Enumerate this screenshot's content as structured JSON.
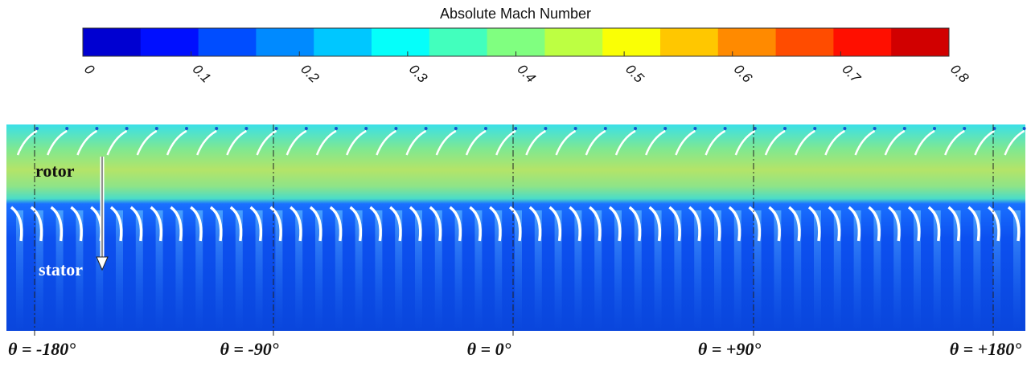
{
  "colorbar": {
    "title": "Absolute Mach Number",
    "lim": [
      0,
      0.8
    ],
    "ticks": [
      0,
      0.1,
      0.2,
      0.3,
      0.4,
      0.5,
      0.6,
      0.7,
      0.8
    ]
  },
  "field": {
    "labels": {
      "rotor": "rotor",
      "stator": "stator"
    },
    "positions": [
      "θ = -180°",
      "θ = -90°",
      "θ = 0°",
      "θ = +90°",
      "θ = +180°"
    ]
  }
}
